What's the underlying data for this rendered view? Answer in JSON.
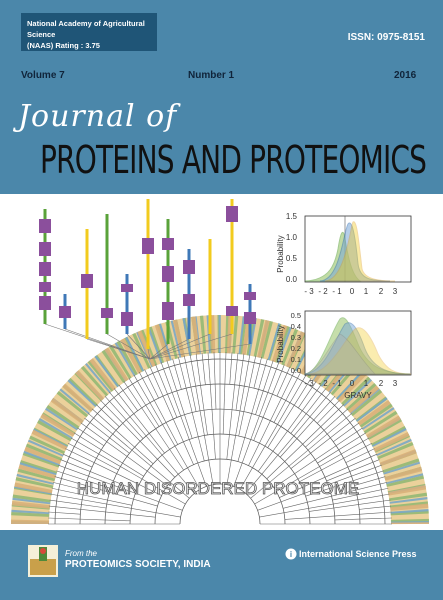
{
  "header": {
    "naas_line1": "National Academy of Agricultural Science",
    "naas_line2": "(NAAS) Rating : 3.75",
    "issn": "ISSN: 0975-8151",
    "volume": "Volume 7",
    "number": "Number 1",
    "year": "2016"
  },
  "title": {
    "journal_of": "Journal of",
    "main": "PROTEINS AND PROTEOMICS"
  },
  "artwork": {
    "tree_label": "HUMAN DISORDERED PROTEOME",
    "plot_top": {
      "ylabel": "Probability",
      "y_ticks": [
        "1.5",
        "1.0",
        "0.5",
        "0.0"
      ],
      "x_ticks": [
        "- 3",
        "- 2",
        "- 1",
        "0",
        "1",
        "2",
        "3"
      ]
    },
    "plot_bottom": {
      "ylabel": "Probability",
      "xlabel": "GRAVY",
      "y_ticks": [
        "0.5",
        "0.4",
        "0.3",
        "0.2",
        "0.1",
        "0.0"
      ],
      "x_ticks": [
        "- 3",
        "- 2",
        "- 1",
        "0",
        "1",
        "2",
        "3"
      ]
    }
  },
  "footer": {
    "from_text": "From the",
    "society": "PROTEOMICS SOCIETY, INDIA",
    "publisher": "International Science Press"
  },
  "colors": {
    "background": "#4b87aa",
    "box_purple": "#8b4f9c",
    "line_yellow": "#f2cb1e",
    "line_green": "#5aa23a",
    "line_blue": "#3f78b7"
  }
}
